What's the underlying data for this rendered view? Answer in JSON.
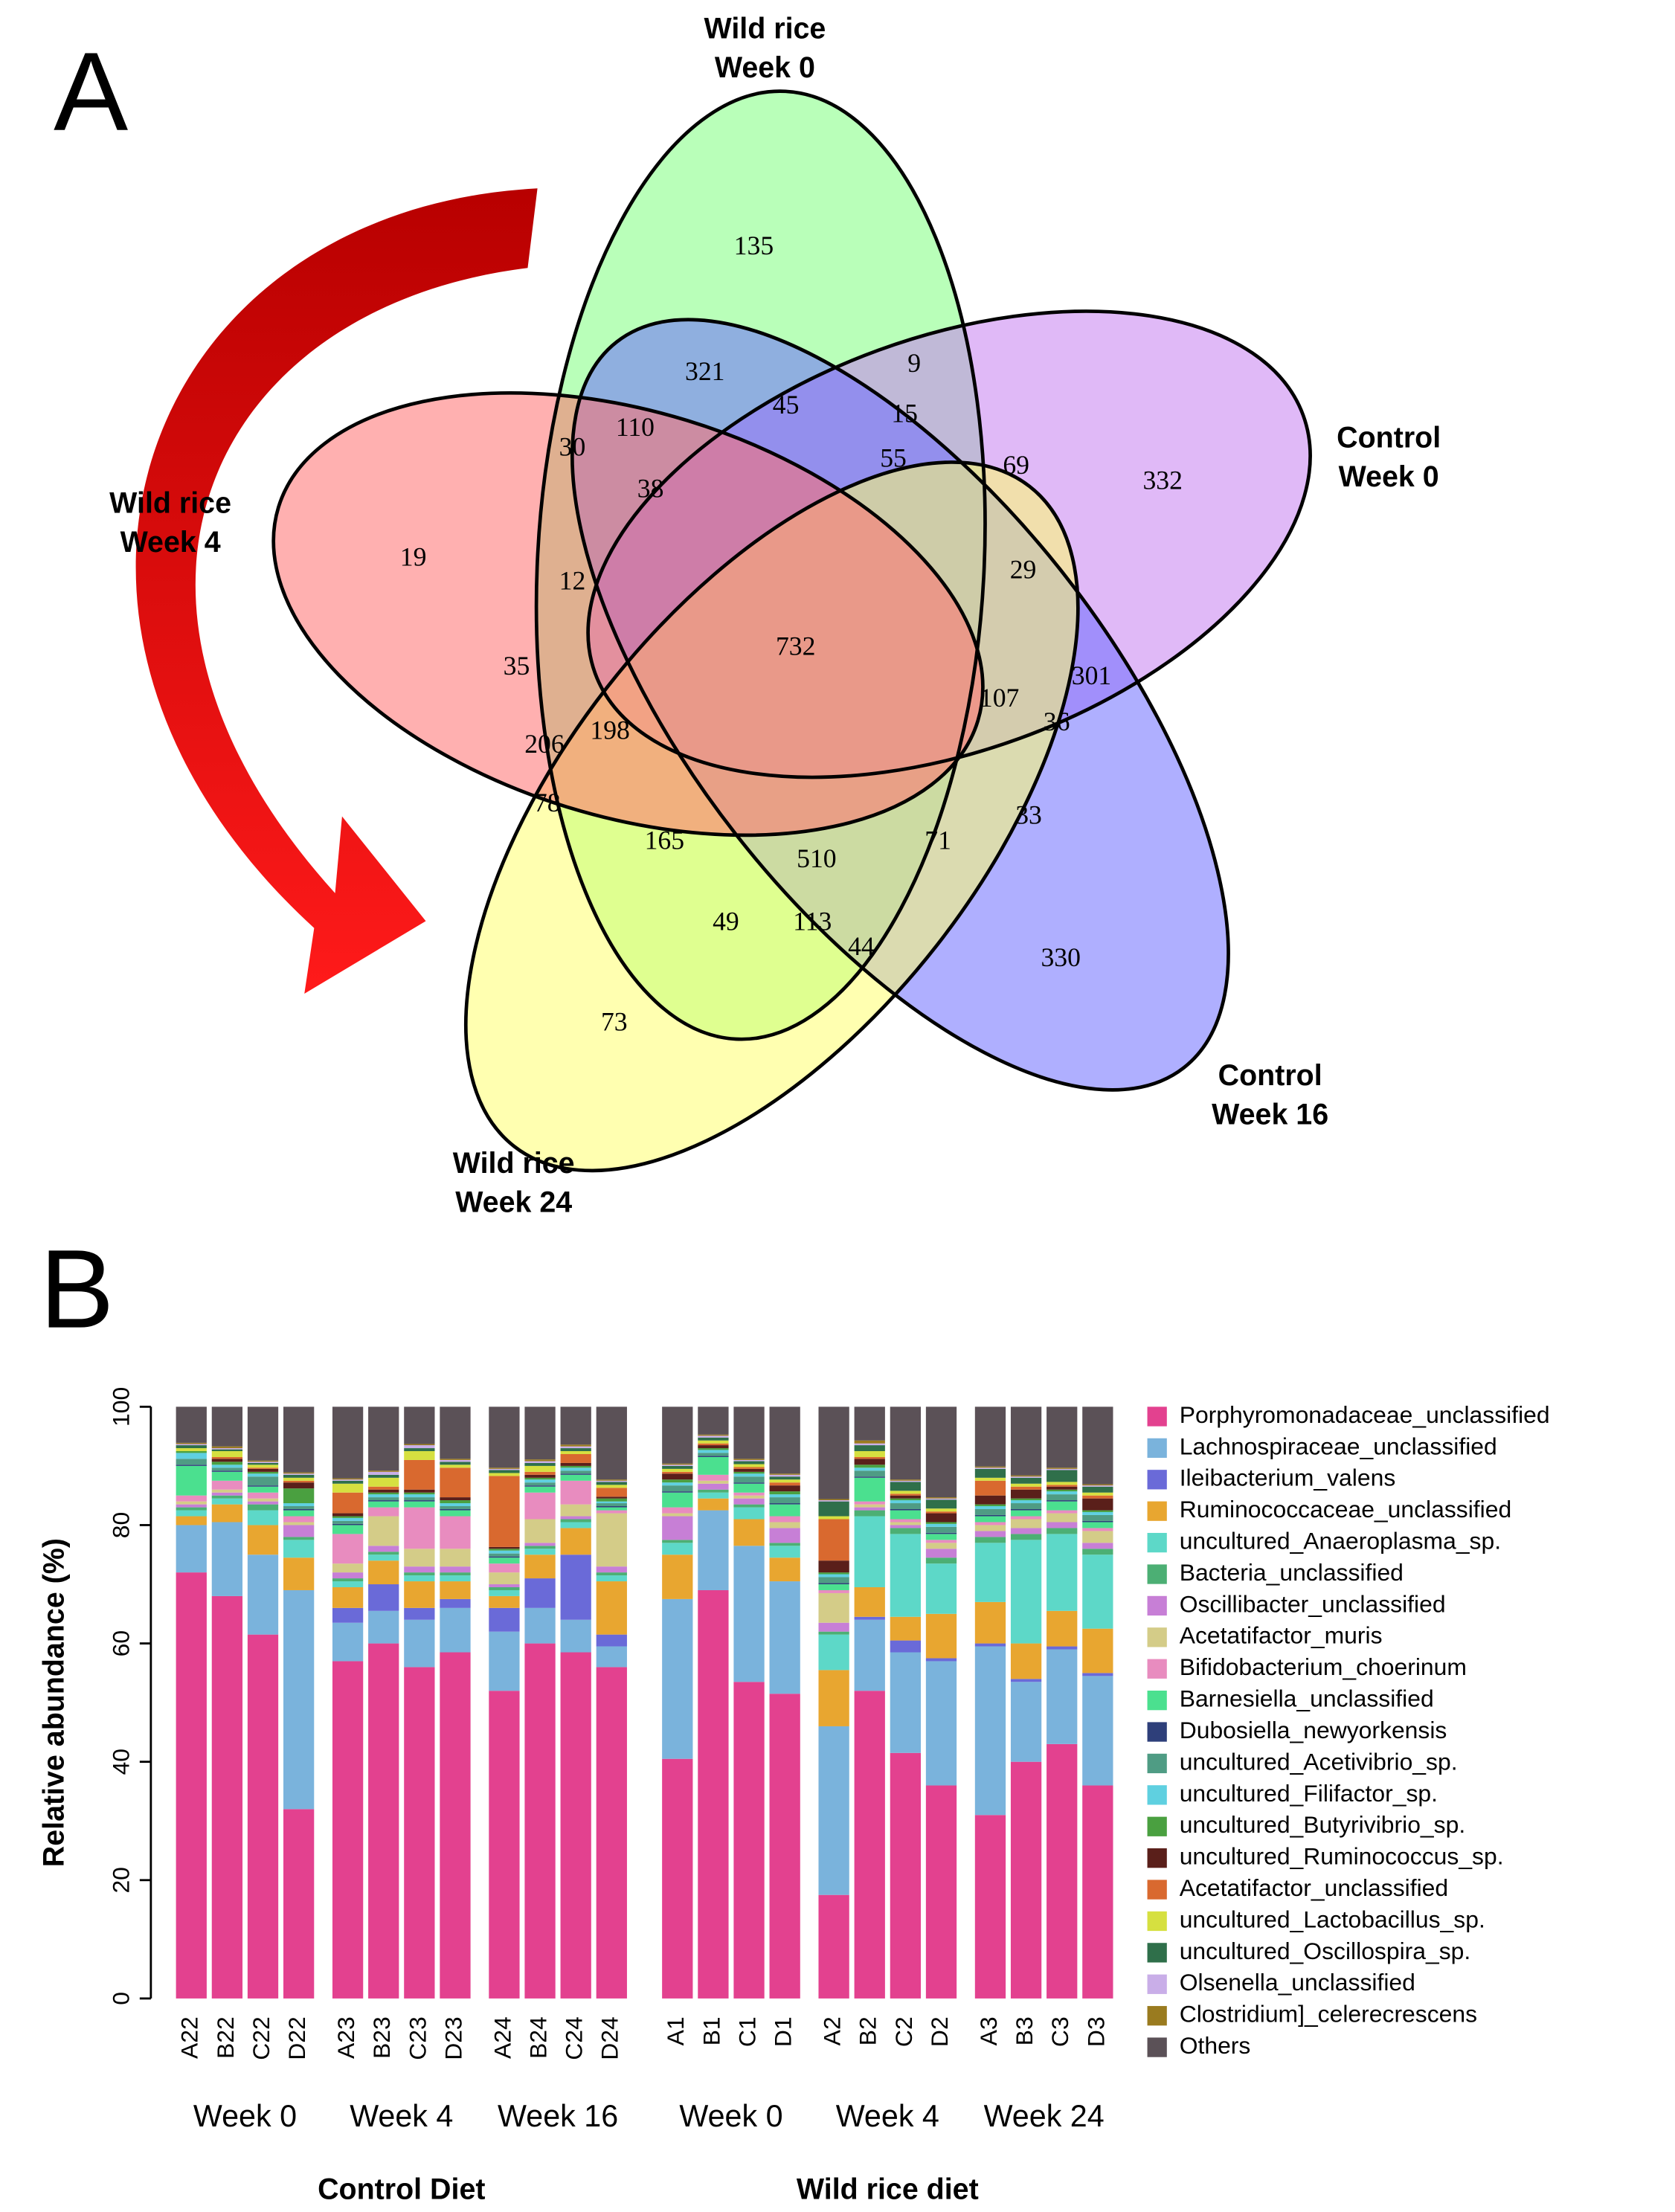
{
  "chart_data": [
    {
      "type": "venn",
      "panel": "A",
      "sets": [
        {
          "label": [
            "Wild rice",
            "Week 0"
          ],
          "color": "#80ff80"
        },
        {
          "label": [
            "Control",
            "Week 0"
          ],
          "color": "#c77ff0"
        },
        {
          "label": [
            "Control",
            "Week 16"
          ],
          "color": "#6e6eff"
        },
        {
          "label": [
            "Wild rice",
            "Week 24"
          ],
          "color": "#ffff70"
        },
        {
          "label": [
            "Wild rice",
            "Week 4"
          ],
          "color": "#ff7070"
        }
      ],
      "regions": [
        135,
        321,
        9,
        45,
        15,
        110,
        30,
        55,
        69,
        332,
        38,
        19,
        12,
        29,
        732,
        35,
        301,
        107,
        198,
        36,
        206,
        78,
        33,
        165,
        71,
        510,
        49,
        113,
        330,
        44,
        73
      ]
    },
    {
      "type": "bar",
      "stacked": true,
      "panel": "B",
      "ylabel": "Relative abundance (%)",
      "ylim": [
        0,
        100
      ],
      "yticks": [
        0,
        20,
        40,
        60,
        80,
        100
      ],
      "legend": "right",
      "groups": [
        {
          "name": "Control Diet",
          "subgroups": [
            {
              "name": "Week 0",
              "categories": [
                "A22",
                "B22",
                "C22",
                "D22"
              ]
            },
            {
              "name": "Week 4",
              "categories": [
                "A23",
                "B23",
                "C23",
                "D23"
              ]
            },
            {
              "name": "Week 16",
              "categories": [
                "A24",
                "B24",
                "C24",
                "D24"
              ]
            }
          ]
        },
        {
          "name": "Wild rice diet",
          "subgroups": [
            {
              "name": "Week 0",
              "categories": [
                "A1",
                "B1",
                "C1",
                "D1"
              ]
            },
            {
              "name": "Week 4",
              "categories": [
                "A2",
                "B2",
                "C2",
                "D2"
              ]
            },
            {
              "name": "Week 24",
              "categories": [
                "A3",
                "B3",
                "C3",
                "D3"
              ]
            }
          ]
        }
      ],
      "series": [
        {
          "name": "Porphyromonadaceae_unclassified",
          "color": "#e3418f",
          "values": [
            72,
            68,
            61.5,
            32,
            57,
            60,
            56,
            58.5,
            52,
            60,
            58.5,
            56,
            40.5,
            69,
            53.5,
            51.5,
            17.5,
            52,
            41.5,
            36,
            31,
            40,
            43,
            36
          ]
        },
        {
          "name": "Lachnospiraceae_unclassified",
          "color": "#7ab3dc",
          "values": [
            8,
            12.5,
            13.5,
            37,
            6.5,
            5.5,
            8,
            7.5,
            10,
            6,
            5.5,
            3.5,
            27,
            13.5,
            23,
            19,
            28.5,
            12,
            17,
            21,
            28.5,
            13.5,
            16,
            18.5
          ]
        },
        {
          "name": "Ileibacterium_valens",
          "color": "#6a6ad8",
          "values": [
            0,
            0,
            0,
            0,
            2.5,
            4.5,
            2,
            1.5,
            4,
            5,
            11,
            2,
            0,
            0,
            0,
            0,
            0,
            0.5,
            2,
            0.5,
            0.5,
            0.5,
            0.5,
            0.5
          ]
        },
        {
          "name": "Ruminococcaceae_unclassified",
          "color": "#e8a630",
          "values": [
            1.5,
            3,
            5,
            5.5,
            3.5,
            4,
            4.5,
            3,
            2,
            4,
            4.5,
            9,
            7.5,
            2,
            4.5,
            4,
            9.5,
            5,
            4,
            7.5,
            7,
            6,
            6,
            7.5
          ]
        },
        {
          "name": "uncultured_Anaeroplasma_sp.",
          "color": "#5dd8c8",
          "values": [
            1,
            1,
            2.5,
            3,
            1,
            1,
            1,
            1,
            1,
            1,
            1,
            1,
            2,
            1,
            2,
            2,
            6,
            12,
            14,
            8.5,
            10,
            17.5,
            13,
            12.5
          ]
        },
        {
          "name": "Bacteria_unclassified",
          "color": "#4caf74",
          "values": [
            0.5,
            0.5,
            1,
            0.5,
            0.5,
            0.5,
            0.5,
            0.5,
            0.5,
            0.5,
            0.5,
            0.5,
            0.5,
            0.5,
            0.5,
            0.5,
            0.5,
            1,
            1,
            1,
            1,
            1,
            1,
            1
          ]
        },
        {
          "name": "Oscillibacter_unclassified",
          "color": "#c77fd6",
          "values": [
            0.5,
            0.5,
            0.5,
            2,
            1,
            1,
            1,
            1,
            0.5,
            0.5,
            0.5,
            1,
            4,
            1,
            1,
            2.5,
            1.5,
            0.5,
            0.5,
            1.5,
            1,
            1,
            1,
            1
          ]
        },
        {
          "name": "Acetatifactor_muris",
          "color": "#d4cc88",
          "values": [
            0.5,
            0.5,
            0.5,
            0.5,
            1.5,
            5,
            3,
            3,
            2,
            4,
            2,
            9,
            0.5,
            0.5,
            0.5,
            1,
            5,
            0.5,
            0.5,
            1,
            1,
            1.5,
            1.5,
            2
          ]
        },
        {
          "name": "Bifidobacterium_choerinum",
          "color": "#e88cbf",
          "values": [
            1,
            1.5,
            1,
            1,
            5,
            1.5,
            7,
            5.5,
            1.5,
            4.5,
            4,
            0.5,
            1,
            1,
            0.5,
            1,
            0.5,
            0.5,
            0.5,
            0.5,
            0.5,
            0.5,
            0.5,
            0.5
          ]
        },
        {
          "name": "Barnesiella_unclassified",
          "color": "#4be08f",
          "values": [
            5,
            1.5,
            1,
            1,
            1.5,
            1,
            1,
            1,
            1,
            1,
            1,
            0.5,
            2.5,
            3,
            1.5,
            2,
            1,
            4,
            1.5,
            1,
            1,
            1,
            1.5,
            1
          ]
        },
        {
          "name": "Dubosiella_newyorkensis",
          "color": "#2e3f7a",
          "values": [
            0.2,
            0.2,
            0.2,
            0.2,
            0.2,
            0.2,
            0.2,
            0.2,
            0.2,
            0.2,
            0.2,
            0.2,
            0.2,
            0.2,
            0.2,
            0.2,
            0.2,
            0.2,
            0.2,
            0.2,
            0.2,
            0.2,
            0.2,
            0.2
          ]
        },
        {
          "name": "uncultured_Acetivibrio_sp.",
          "color": "#4f9c84",
          "values": [
            1,
            0.5,
            1.5,
            0.5,
            0.5,
            0.5,
            0.5,
            0.5,
            0.5,
            0.5,
            0.5,
            0.5,
            1,
            0.5,
            1,
            1,
            1,
            1,
            1,
            1,
            1,
            1,
            1,
            1
          ]
        },
        {
          "name": "uncultured_Filifactor_sp.",
          "color": "#5fd0e0",
          "values": [
            1,
            0.5,
            0.5,
            0.5,
            0.5,
            0.5,
            0.5,
            0.5,
            0.5,
            0.5,
            0.5,
            0.3,
            0.5,
            0.5,
            0.5,
            0.5,
            0.5,
            0.5,
            0.5,
            0.5,
            0.5,
            0.5,
            0.5,
            0.5
          ]
        },
        {
          "name": "uncultured_Butyrivibrio_sp.",
          "color": "#4aa040",
          "values": [
            0.3,
            0.5,
            0.3,
            2.5,
            0.3,
            0.3,
            0.3,
            0.5,
            0.3,
            0.3,
            0.3,
            0.5,
            0.5,
            0.3,
            0.3,
            0.5,
            0.3,
            0.5,
            0.3,
            0.3,
            0.3,
            0.3,
            0.3,
            0.3
          ]
        },
        {
          "name": "uncultured_Ruminococcus_sp.",
          "color": "#5a1f1a",
          "values": [
            0,
            0.5,
            0.5,
            1,
            0.5,
            0.5,
            0.5,
            0.5,
            0.3,
            0.5,
            0.5,
            0.3,
            1,
            0.5,
            0.5,
            1,
            2,
            1,
            0.5,
            1.5,
            1.5,
            1.5,
            0.5,
            2
          ]
        },
        {
          "name": "Acetatifactor_unclassified",
          "color": "#d9692f",
          "values": [
            0,
            0.3,
            0.2,
            0.3,
            3.5,
            0.5,
            5,
            5,
            12,
            0.5,
            1.5,
            1.5,
            0.3,
            0.3,
            0.3,
            0.5,
            7,
            0.3,
            0.3,
            0.3,
            2.5,
            0.5,
            0.3,
            0.5
          ]
        },
        {
          "name": "uncultured_Lactobacillus_sp.",
          "color": "#d6e040",
          "values": [
            0.5,
            1,
            0.5,
            0.5,
            1.5,
            1.5,
            1.5,
            0.5,
            0.5,
            1,
            0.5,
            0.5,
            0.5,
            0.5,
            0.5,
            0.5,
            0.5,
            1,
            0.5,
            0.5,
            0.5,
            0.5,
            0.5,
            0.5
          ]
        },
        {
          "name": "uncultured_Oscillospira_sp.",
          "color": "#2f6f4a",
          "values": [
            0.5,
            0.3,
            0.3,
            0.5,
            0.5,
            0.5,
            0.5,
            0.5,
            0.5,
            0.5,
            0.5,
            0.5,
            0.5,
            0.5,
            0.5,
            0.5,
            2.5,
            1,
            1.5,
            1.5,
            1.5,
            1,
            2,
            1
          ]
        },
        {
          "name": "Olsenella_unclassified",
          "color": "#c9aee8",
          "values": [
            0.2,
            0.2,
            0.2,
            0.2,
            0.2,
            0.5,
            0.5,
            0.3,
            0.2,
            0.3,
            0.3,
            0.2,
            0.2,
            0.3,
            0.2,
            0.3,
            0.2,
            0.3,
            0.2,
            0.2,
            0.2,
            0.2,
            0.2,
            0.2
          ]
        },
        {
          "name": "Clostridium]_celerecrescens",
          "color": "#9a7b1f",
          "values": [
            0.2,
            0.3,
            0.2,
            0.2,
            0.2,
            0.2,
            0.2,
            0.2,
            0.2,
            0.3,
            0.3,
            0.2,
            0.2,
            0.2,
            0.2,
            0.2,
            0.2,
            0.5,
            0.2,
            0.2,
            0.2,
            0.2,
            0.2,
            0.2
          ]
        },
        {
          "name": "Others",
          "color": "#5b5157",
          "values": [
            6.1,
            6.7,
            9.1,
            11.1,
            12.1,
            10.8,
            6.3,
            8.8,
            10.3,
            8.9,
            6.4,
            12.3,
            9.6,
            4.7,
            8.8,
            11.3,
            15.6,
            5.7,
            12.3,
            15.3,
            10.1,
            11.6,
            10.3,
            13.1
          ]
        }
      ]
    }
  ]
}
